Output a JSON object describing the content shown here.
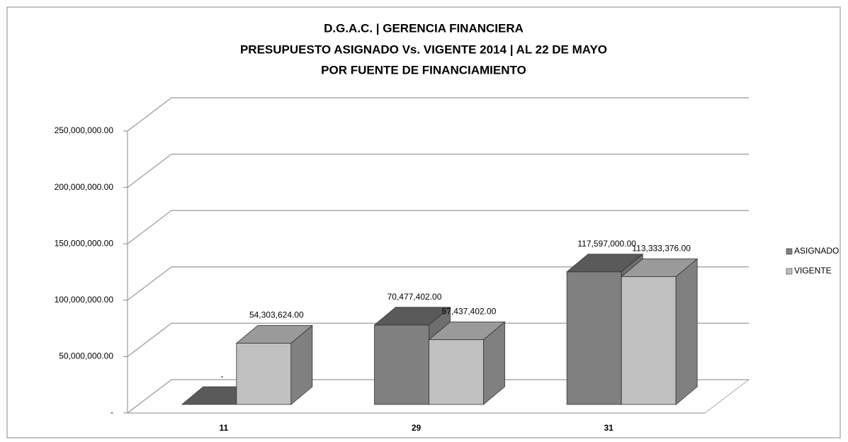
{
  "chart_data": {
    "type": "bar3d",
    "title": [
      "D.G.A.C. | GERENCIA FINANCIERA",
      "PRESUPUESTO ASIGNADO Vs. VIGENTE 2014 | AL 22 DE MAYO",
      "POR FUENTE DE FINANCIAMIENTO"
    ],
    "categories": [
      "11",
      "29",
      "31"
    ],
    "series": [
      {
        "name": "ASIGNADO",
        "color": "#808080",
        "values": [
          0,
          70477402,
          117597000
        ],
        "value_labels": [
          "-",
          "70,477,402.00",
          "117,597,000.00"
        ]
      },
      {
        "name": "VIGENTE",
        "color": "#c0c0c0",
        "values": [
          54303624,
          57437402,
          113333376
        ],
        "value_labels": [
          "54,303,624.00",
          "57,437,402.00",
          "113,333,376.00"
        ]
      }
    ],
    "ylim": [
      0,
      250000000
    ],
    "yticks": [
      {
        "value": 0,
        "label": "-"
      },
      {
        "value": 50000000,
        "label": "50,000,000.00"
      },
      {
        "value": 100000000,
        "label": "100,000,000.00"
      },
      {
        "value": 150000000,
        "label": "150,000,000.00"
      },
      {
        "value": 200000000,
        "label": "200,000,000.00"
      },
      {
        "value": 250000000,
        "label": "250,000,000.00"
      }
    ],
    "grid": true,
    "legend": "right"
  }
}
